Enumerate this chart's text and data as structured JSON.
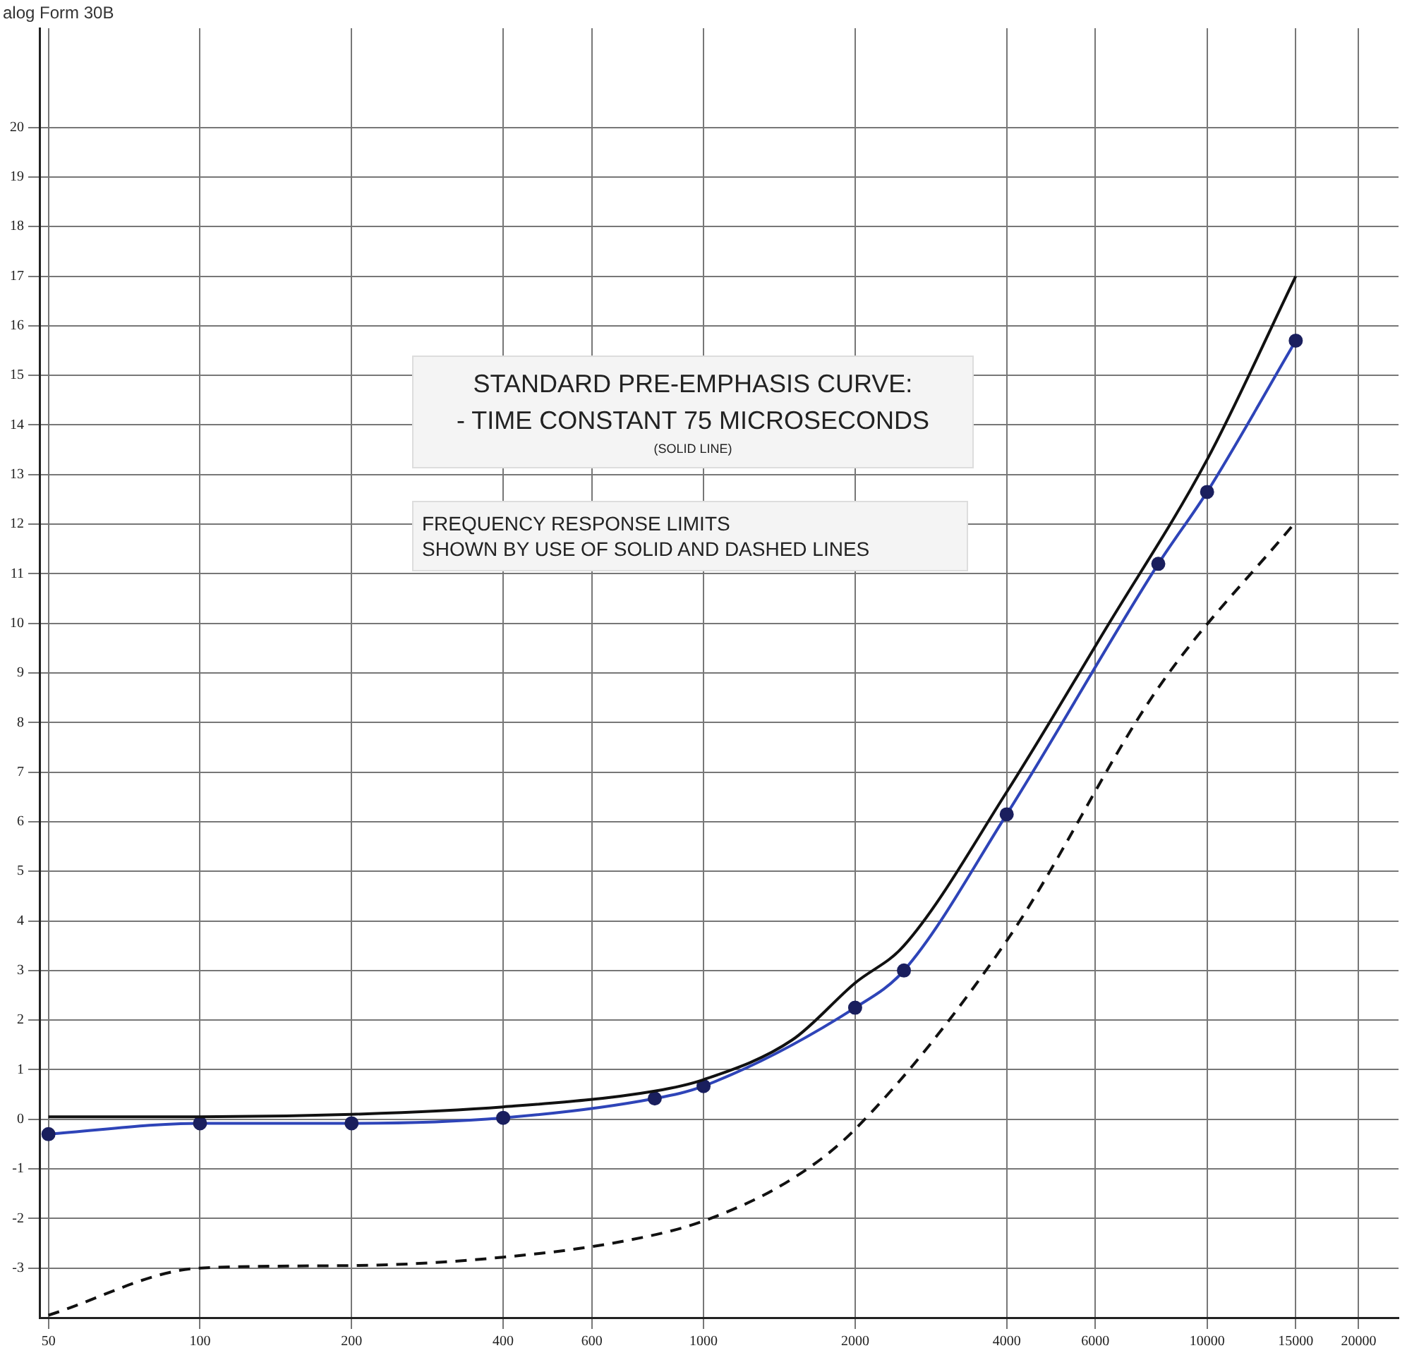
{
  "chart_data": {
    "type": "line",
    "annotations": [
      "alog Form 30B",
      "STANDARD PRE-EMPHASIS CURVE:\n- TIME CONSTANT 75 MICROSECONDS",
      "(SOLID LINE)",
      "FREQUENCY RESPONSE LIMITS\nSHOWN BY USE OF SOLID AND DASHED LINES"
    ],
    "series": [
      {
        "color": "#111111",
        "line_style": "solid",
        "marker": "none",
        "x": [
          50,
          100,
          200,
          400,
          800,
          1000,
          1500,
          2000,
          2500,
          4000,
          6300,
          10000,
          15000
        ],
        "values": [
          0.05,
          0.05,
          0.1,
          0.25,
          0.57,
          0.8,
          1.6,
          2.75,
          3.5,
          6.6,
          9.9,
          13.3,
          17.0
        ]
      },
      {
        "color": "#2e44b8",
        "line_style": "solid",
        "marker": "circle",
        "x": [
          50,
          100,
          200,
          400,
          800,
          1000,
          2000,
          2500,
          4000,
          8000,
          10000,
          15000
        ],
        "values": [
          -0.3,
          -0.08,
          -0.08,
          0.03,
          0.42,
          0.67,
          2.25,
          3.0,
          6.15,
          11.2,
          12.65,
          15.7
        ]
      },
      {
        "color": "#111111",
        "line_style": "dashed",
        "marker": "none",
        "x": [
          50,
          100,
          200,
          400,
          700,
          1000,
          1500,
          2000,
          4000,
          8000,
          15000
        ],
        "values": [
          -3.95,
          -3.0,
          -2.95,
          -2.78,
          -2.45,
          -2.05,
          -1.2,
          -0.2,
          3.6,
          8.7,
          12.05
        ]
      }
    ],
    "log": "x",
    "xlim": [
      48,
      24000
    ],
    "xticks": [
      50,
      100,
      200,
      400,
      600,
      1000,
      2000,
      4000,
      6000,
      10000,
      15000,
      20000
    ],
    "ylim": [
      -4,
      22
    ],
    "yticks": [
      -3,
      -2,
      -1,
      0,
      1,
      2,
      3,
      4,
      5,
      6,
      7,
      8,
      9,
      10,
      11,
      12,
      13,
      14,
      15,
      16,
      17,
      18,
      19,
      20
    ],
    "grid": true,
    "legend": false
  }
}
